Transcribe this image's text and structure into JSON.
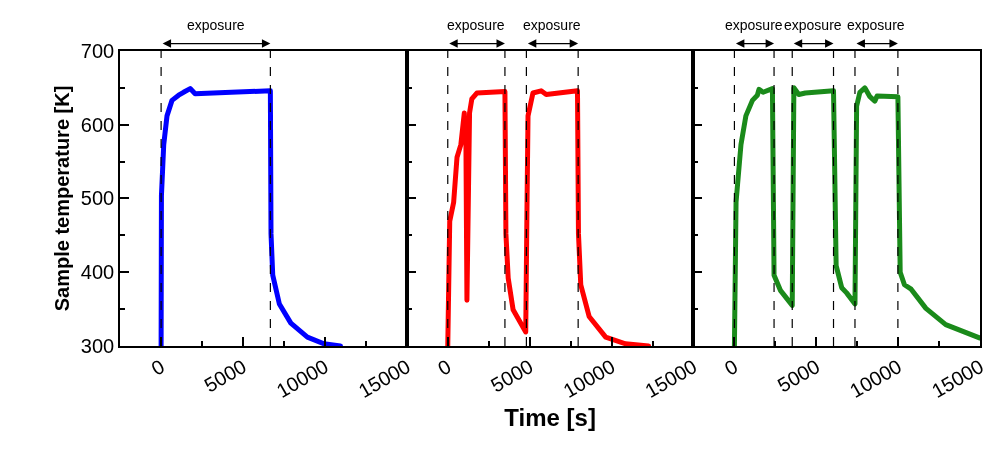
{
  "chart_data": [
    {
      "type": "line",
      "ylabel": "Sample temperature [K]",
      "xlim": [
        -2500,
        15000
      ],
      "ylim": [
        300,
        700
      ],
      "xticks": [
        {
          "value": -2500,
          "label": null
        },
        0,
        {
          "value": 2500,
          "label": null
        },
        5000,
        {
          "value": 7500,
          "label": null
        },
        10000,
        {
          "value": 12500,
          "label": null
        },
        15000
      ],
      "yticks": [
        300,
        {
          "value": 350,
          "label": null
        },
        400,
        {
          "value": 450,
          "label": null
        },
        500,
        {
          "value": 550,
          "label": null
        },
        600,
        {
          "value": 650,
          "label": null
        },
        700
      ],
      "series": [
        {
          "color": "#0000ff",
          "x": [
            0,
            20,
            160,
            360,
            665,
            1070,
            1370,
            1775,
            2075,
            4290,
            6670,
            6710,
            6815,
            7220,
            7920,
            8930,
            9940,
            10950
          ],
          "values": [
            300,
            504,
            573,
            612,
            633,
            640,
            644,
            649,
            642,
            644,
            646,
            452,
            396,
            357,
            331,
            312,
            303,
            300
          ]
        }
      ],
      "ref_lines": [
        {
          "axis": "x",
          "value": 0,
          "line_style": "dashed"
        },
        {
          "axis": "x",
          "value": 6670,
          "line_style": "dashed"
        }
      ],
      "annotations": [
        "exposure"
      ]
    },
    {
      "type": "line",
      "xlabel": "Time [s]",
      "xlim": [
        -2500,
        15000
      ],
      "ylim": [
        300,
        700
      ],
      "tick_labels": "x",
      "xticks": [
        {
          "value": -2500,
          "label": null
        },
        0,
        {
          "value": 2500,
          "label": null
        },
        5000,
        {
          "value": 7500,
          "label": null
        },
        10000,
        {
          "value": 12500,
          "label": null
        },
        15000
      ],
      "yticks": [
        300,
        {
          "value": 350,
          "label": null
        },
        400,
        {
          "value": 450,
          "label": null
        },
        500,
        {
          "value": 550,
          "label": null
        },
        600,
        {
          "value": 650,
          "label": null
        },
        700
      ],
      "series": [
        {
          "color": "#ff0000",
          "x": [
            0,
            120,
            360,
            565,
            800,
            1010,
            1110,
            1170,
            1330,
            1470,
            1775,
            3490,
            3550,
            3690,
            3990,
            4760,
            4840,
            4900,
            5200,
            5700,
            6010,
            7920,
            7980,
            8120,
            8630,
            9640,
            10850,
            12260
          ],
          "values": [
            300,
            469,
            495,
            556,
            573,
            616,
            573,
            362,
            616,
            635,
            643,
            645,
            452,
            392,
            349,
            319,
            495,
            612,
            643,
            646,
            641,
            646,
            452,
            383,
            340,
            312,
            303,
            300
          ]
        }
      ],
      "ref_lines": [
        {
          "axis": "x",
          "value": 0,
          "line_style": "dashed"
        },
        {
          "axis": "x",
          "value": 3490,
          "line_style": "dashed"
        },
        {
          "axis": "x",
          "value": 4800,
          "line_style": "dashed"
        },
        {
          "axis": "x",
          "value": 7960,
          "line_style": "dashed"
        }
      ],
      "annotations": [
        "exposure",
        "exposure"
      ]
    },
    {
      "type": "line",
      "xlim": [
        -2500,
        15000
      ],
      "ylim": [
        300,
        700
      ],
      "tick_labels": "x",
      "xticks": [
        {
          "value": -2500,
          "label": null
        },
        0,
        {
          "value": 2500,
          "label": null
        },
        5000,
        {
          "value": 7500,
          "label": null
        },
        10000,
        {
          "value": 12500,
          "label": null
        },
        15000
      ],
      "yticks": [
        300,
        {
          "value": 350,
          "label": null
        },
        400,
        {
          "value": 450,
          "label": null
        },
        500,
        {
          "value": 550,
          "label": null
        },
        600,
        {
          "value": 650,
          "label": null
        },
        700
      ],
      "series": [
        {
          "color": "#1a8a1a",
          "x": [
            0,
            100,
            400,
            700,
            1100,
            1400,
            1500,
            1750,
            2320,
            2420,
            2820,
            3530,
            3630,
            3930,
            4330,
            6050,
            6210,
            6550,
            6850,
            7360,
            7460,
            7660,
            7960,
            8270,
            8570,
            8710,
            9980,
            10120,
            10380,
            10790,
            11690,
            12900,
            14960
          ],
          "values": [
            300,
            495,
            573,
            612,
            633,
            640,
            648,
            644,
            649,
            396,
            375,
            355,
            650,
            641,
            643,
            646,
            409,
            379,
            372,
            357,
            625,
            644,
            650,
            638,
            632,
            639,
            638,
            400,
            383,
            377,
            351,
            329,
            311
          ]
        }
      ],
      "ref_lines": [
        {
          "axis": "x",
          "value": 0,
          "line_style": "dashed"
        },
        {
          "axis": "x",
          "value": 2420,
          "line_style": "dashed"
        },
        {
          "axis": "x",
          "value": 3530,
          "line_style": "dashed"
        },
        {
          "axis": "x",
          "value": 6050,
          "line_style": "dashed"
        },
        {
          "axis": "x",
          "value": 7360,
          "line_style": "dashed"
        },
        {
          "axis": "x",
          "value": 9980,
          "line_style": "dashed"
        }
      ],
      "annotations": [
        "exposure",
        "exposure",
        "exposure"
      ]
    }
  ]
}
